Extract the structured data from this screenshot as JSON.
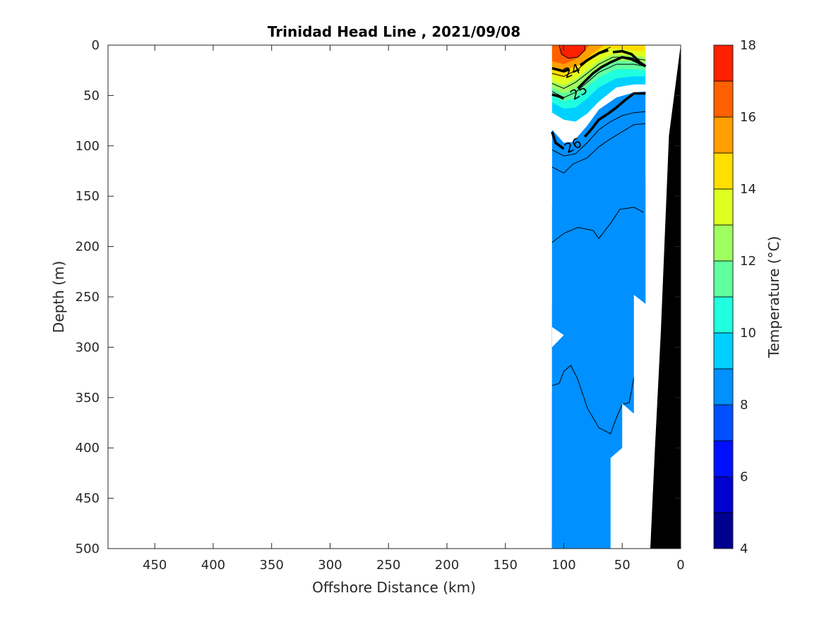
{
  "chart_data": {
    "type": "contour",
    "title": "Trinidad Head Line , 2021/09/08",
    "xlabel": "Offshore Distance (km)",
    "ylabel": "Depth (m)",
    "xlim": [
      490,
      0
    ],
    "ylim": [
      0,
      500
    ],
    "x_reversed": true,
    "y_reversed": true,
    "x_ticks": [
      "450",
      "400",
      "350",
      "300",
      "250",
      "200",
      "150",
      "100",
      "50",
      "0"
    ],
    "y_ticks": [
      "0",
      "50",
      "100",
      "150",
      "200",
      "250",
      "300",
      "350",
      "400",
      "450",
      "500"
    ],
    "colorbar": {
      "label": "Temperature (°C)",
      "min": 4,
      "max": 18,
      "step": 1,
      "ticks": [
        "4",
        "6",
        "8",
        "10",
        "12",
        "14",
        "16",
        "18"
      ],
      "colors": [
        "#00008f",
        "#0000cf",
        "#0010ff",
        "#0050ff",
        "#0090ff",
        "#00d0ff",
        "#20ffdf",
        "#60ff9f",
        "#9fff60",
        "#dfff20",
        "#ffdf00",
        "#ff9f00",
        "#ff6000",
        "#ff2000",
        "#df0000"
      ]
    },
    "section_extent_km": [
      110,
      30
    ],
    "density_contour_labels": [
      "24",
      "25",
      "26"
    ],
    "seafloor_color": "#000000"
  }
}
